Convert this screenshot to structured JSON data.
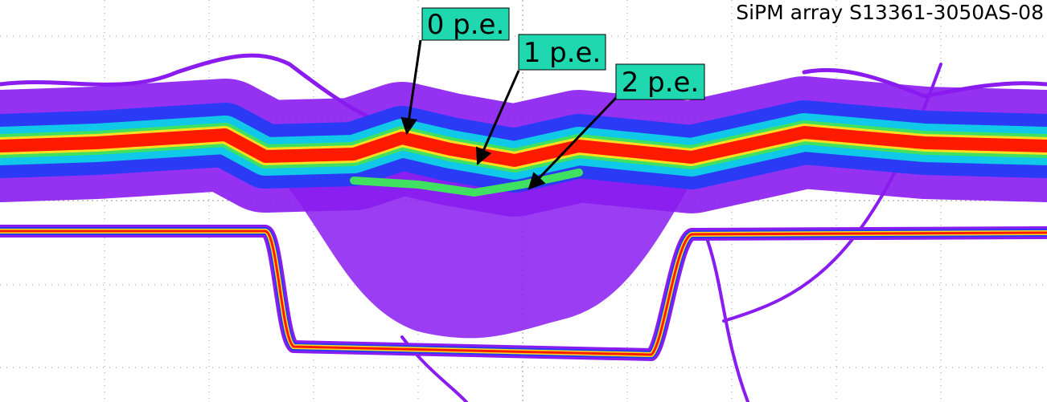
{
  "header": {
    "title": "SiPM array S13361-3050AS-08"
  },
  "annotations": [
    {
      "label": "0 p.e."
    },
    {
      "label": "1 p.e."
    },
    {
      "label": "2 p.e."
    }
  ]
}
